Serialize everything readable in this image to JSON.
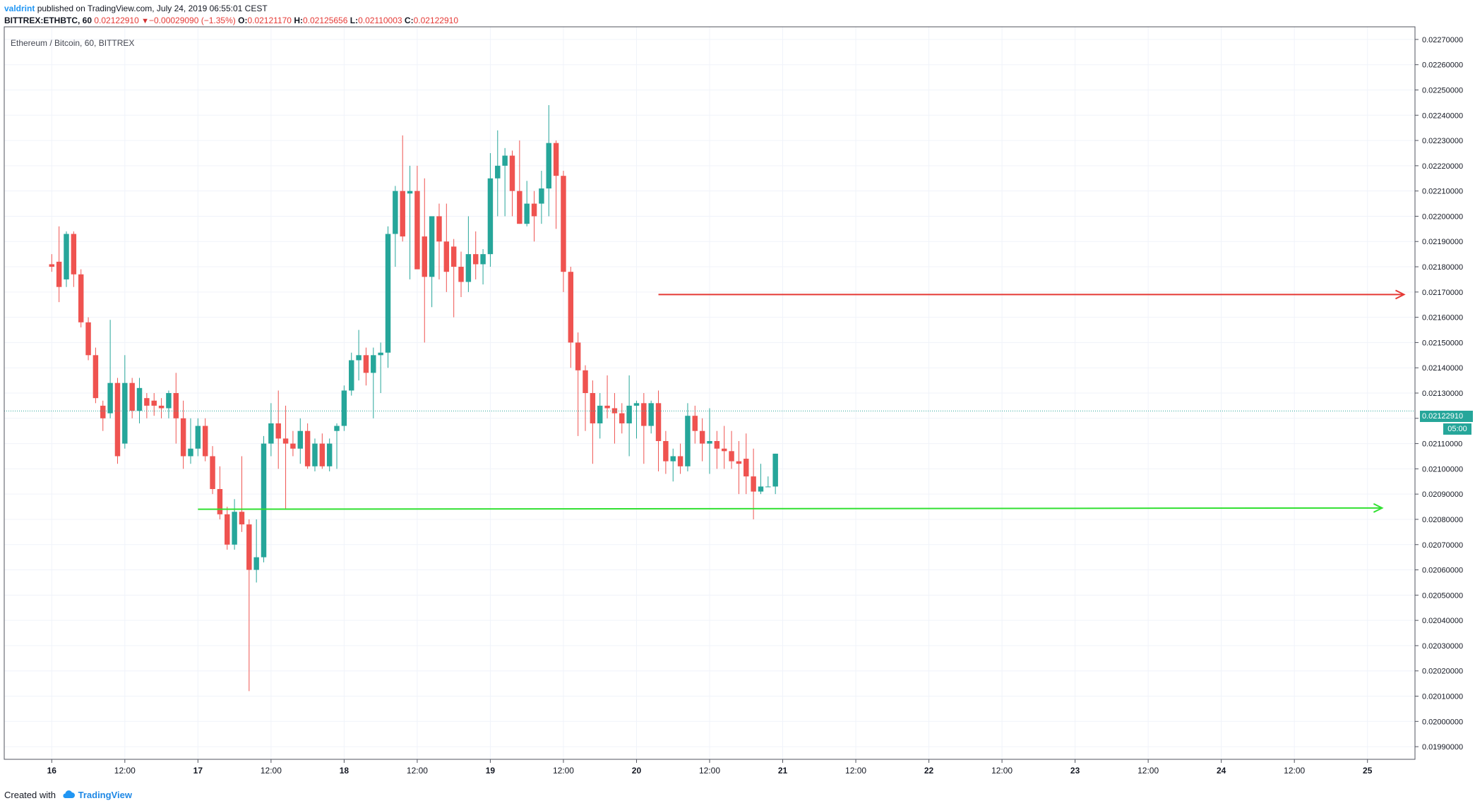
{
  "header": {
    "author": "valdrint",
    "published_text": "published on TradingView.com, July 24, 2019 06:55:01 CEST",
    "symbol": "BITTREX:ETHBTC, 60",
    "last": "0.02122910",
    "change_arrow": "triangle-down-icon",
    "change": "−0.00029090 (−1.35%)",
    "o_label": "O:",
    "o_value": "0.02121170",
    "h_label": "H:",
    "h_value": "0.02125656",
    "l_label": "L:",
    "l_value": "0.02110003",
    "c_label": "C:",
    "c_value": "0.02122910"
  },
  "pane_title": "Ethereum / Bitcoin, 60, BITTREX",
  "price_tag": "0.02122910",
  "countdown": "05:00",
  "footer": {
    "created_with": "Created with",
    "logo_text": "TradingView",
    "logo_icon": "tradingview-cloud-icon"
  },
  "colors": {
    "up": "#26a69a",
    "down": "#ef5350",
    "resistance": "#e53935",
    "support": "#31e031",
    "grid": "#f0f3fa"
  },
  "chart_data": {
    "type": "candlestick",
    "title": "Ethereum / Bitcoin, 60, BITTREX",
    "interval": "60",
    "ylim": [
      0.01985,
      0.02275
    ],
    "xlim": [
      -6.5,
      186.5
    ],
    "y_ticks": [
      "0.02270000",
      "0.02260000",
      "0.02250000",
      "0.02240000",
      "0.02230000",
      "0.02220000",
      "0.02210000",
      "0.02200000",
      "0.02190000",
      "0.02180000",
      "0.02170000",
      "0.02160000",
      "0.02150000",
      "0.02140000",
      "0.02130000",
      "0.02120000",
      "0.02110000",
      "0.02100000",
      "0.02090000",
      "0.02080000",
      "0.02070000",
      "0.02060000",
      "0.02050000",
      "0.02040000",
      "0.02030000",
      "0.02020000",
      "0.02010000",
      "0.02000000",
      "0.01990000"
    ],
    "x_ticks": [
      {
        "label": "16",
        "i": 0,
        "bold": true
      },
      {
        "label": "12:00",
        "i": 10
      },
      {
        "label": "17",
        "i": 20,
        "bold": true
      },
      {
        "label": "12:00",
        "i": 30
      },
      {
        "label": "18",
        "i": 40,
        "bold": true
      },
      {
        "label": "12:00",
        "i": 50
      },
      {
        "label": "19",
        "i": 60,
        "bold": true
      },
      {
        "label": "12:00",
        "i": 70
      },
      {
        "label": "20",
        "i": 80,
        "bold": true
      },
      {
        "label": "12:00",
        "i": 90
      },
      {
        "label": "21",
        "i": 100,
        "bold": true
      },
      {
        "label": "12:00",
        "i": 110
      },
      {
        "label": "22",
        "i": 120,
        "bold": true
      },
      {
        "label": "12:00",
        "i": 130
      },
      {
        "label": "23",
        "i": 140,
        "bold": true
      },
      {
        "label": "12:00",
        "i": 150
      },
      {
        "label": "24",
        "i": 160,
        "bold": true
      },
      {
        "label": "12:00",
        "i": 170
      },
      {
        "label": "25",
        "i": 180,
        "bold": true
      }
    ],
    "lines": [
      {
        "name": "resistance",
        "color": "#e53935",
        "x0": 83,
        "y0": 0.02169,
        "x1": 185,
        "y1": 0.02169
      },
      {
        "name": "support",
        "color": "#31e031",
        "x0": 20,
        "y0": 0.02084,
        "x1": 182,
        "y1": 0.020845
      }
    ],
    "last_price": 0.0212291,
    "candles": [
      [
        0.02181,
        0.02185,
        0.02178,
        0.0218
      ],
      [
        0.02182,
        0.02196,
        0.02166,
        0.02172
      ],
      [
        0.02175,
        0.02194,
        0.02172,
        0.02193
      ],
      [
        0.02193,
        0.02194,
        0.02172,
        0.02177
      ],
      [
        0.02177,
        0.02179,
        0.02156,
        0.02158
      ],
      [
        0.02158,
        0.0216,
        0.02143,
        0.02145
      ],
      [
        0.02145,
        0.02148,
        0.02126,
        0.02128
      ],
      [
        0.02125,
        0.02127,
        0.02115,
        0.0212
      ],
      [
        0.02122,
        0.02159,
        0.0212,
        0.02134
      ],
      [
        0.02134,
        0.02136,
        0.02102,
        0.02105
      ],
      [
        0.0211,
        0.02145,
        0.02108,
        0.02134
      ],
      [
        0.02134,
        0.02136,
        0.0212,
        0.02123
      ],
      [
        0.02123,
        0.02136,
        0.02118,
        0.02132
      ],
      [
        0.02128,
        0.0213,
        0.0212,
        0.02125
      ],
      [
        0.02127,
        0.0213,
        0.02121,
        0.02125
      ],
      [
        0.02125,
        0.02128,
        0.0212,
        0.02124
      ],
      [
        0.02124,
        0.02131,
        0.0212,
        0.0213
      ],
      [
        0.0213,
        0.02138,
        0.0211,
        0.0212
      ],
      [
        0.0212,
        0.02127,
        0.021,
        0.02105
      ],
      [
        0.02105,
        0.0212,
        0.02102,
        0.02108
      ],
      [
        0.02108,
        0.0212,
        0.02105,
        0.02117
      ],
      [
        0.02117,
        0.0212,
        0.02103,
        0.02105
      ],
      [
        0.02105,
        0.02109,
        0.0209,
        0.02092
      ],
      [
        0.02092,
        0.02101,
        0.0208,
        0.02082
      ],
      [
        0.02082,
        0.02085,
        0.02068,
        0.0207
      ],
      [
        0.0207,
        0.02088,
        0.02068,
        0.02083
      ],
      [
        0.02083,
        0.02105,
        0.02075,
        0.02078
      ],
      [
        0.02078,
        0.0208,
        0.02012,
        0.0206
      ],
      [
        0.0206,
        0.0208,
        0.02055,
        0.02065
      ],
      [
        0.02065,
        0.02113,
        0.02063,
        0.0211
      ],
      [
        0.0211,
        0.02126,
        0.02105,
        0.02118
      ],
      [
        0.02118,
        0.02131,
        0.021,
        0.02112
      ],
      [
        0.02112,
        0.02125,
        0.02084,
        0.0211
      ],
      [
        0.0211,
        0.02115,
        0.02105,
        0.02108
      ],
      [
        0.02108,
        0.0212,
        0.02102,
        0.02115
      ],
      [
        0.02115,
        0.02118,
        0.021,
        0.02101
      ],
      [
        0.02101,
        0.02112,
        0.02099,
        0.0211
      ],
      [
        0.0211,
        0.02114,
        0.021,
        0.02101
      ],
      [
        0.02101,
        0.02112,
        0.02099,
        0.0211
      ],
      [
        0.02115,
        0.02118,
        0.021,
        0.02117
      ],
      [
        0.02117,
        0.02133,
        0.02115,
        0.02131
      ],
      [
        0.02131,
        0.02146,
        0.02129,
        0.02143
      ],
      [
        0.02143,
        0.02155,
        0.02135,
        0.02145
      ],
      [
        0.02145,
        0.02148,
        0.02133,
        0.02138
      ],
      [
        0.02138,
        0.02148,
        0.0212,
        0.02145
      ],
      [
        0.02145,
        0.0215,
        0.0213,
        0.02146
      ],
      [
        0.02146,
        0.02196,
        0.0214,
        0.02193
      ],
      [
        0.02193,
        0.02212,
        0.0218,
        0.0221
      ],
      [
        0.0221,
        0.02232,
        0.0219,
        0.02192
      ],
      [
        0.02209,
        0.0222,
        0.02175,
        0.0221
      ],
      [
        0.0221,
        0.0222,
        0.0218,
        0.02179
      ],
      [
        0.02192,
        0.02215,
        0.0215,
        0.02176
      ],
      [
        0.02176,
        0.022,
        0.02164,
        0.022
      ],
      [
        0.022,
        0.02205,
        0.02175,
        0.0219
      ],
      [
        0.0219,
        0.02205,
        0.0217,
        0.02178
      ],
      [
        0.02188,
        0.02191,
        0.0216,
        0.0218
      ],
      [
        0.0218,
        0.02186,
        0.02168,
        0.02174
      ],
      [
        0.02174,
        0.022,
        0.0217,
        0.02185
      ],
      [
        0.02185,
        0.02194,
        0.02175,
        0.02181
      ],
      [
        0.02181,
        0.02187,
        0.02173,
        0.02185
      ],
      [
        0.02185,
        0.02225,
        0.0218,
        0.02215
      ],
      [
        0.02215,
        0.02234,
        0.022,
        0.0222
      ],
      [
        0.0222,
        0.02227,
        0.022,
        0.02224
      ],
      [
        0.02224,
        0.02226,
        0.022,
        0.0221
      ],
      [
        0.0221,
        0.0223,
        0.02197,
        0.02197
      ],
      [
        0.02197,
        0.02214,
        0.02196,
        0.02205
      ],
      [
        0.02205,
        0.0221,
        0.0219,
        0.022
      ],
      [
        0.02205,
        0.02218,
        0.02197,
        0.02211
      ],
      [
        0.02211,
        0.02244,
        0.022,
        0.02229
      ],
      [
        0.02229,
        0.0223,
        0.02195,
        0.02216
      ],
      [
        0.02216,
        0.02218,
        0.0217,
        0.02178
      ],
      [
        0.02178,
        0.0218,
        0.0214,
        0.0215
      ],
      [
        0.0215,
        0.02154,
        0.02113,
        0.02139
      ],
      [
        0.02139,
        0.02141,
        0.02115,
        0.0213
      ],
      [
        0.0213,
        0.02135,
        0.02102,
        0.02118
      ],
      [
        0.02118,
        0.0213,
        0.02112,
        0.02125
      ],
      [
        0.02125,
        0.02137,
        0.0212,
        0.02124
      ],
      [
        0.02124,
        0.0213,
        0.0211,
        0.02122
      ],
      [
        0.02122,
        0.02126,
        0.02114,
        0.02118
      ],
      [
        0.02118,
        0.02137,
        0.02105,
        0.02125
      ],
      [
        0.02125,
        0.02127,
        0.02112,
        0.02126
      ],
      [
        0.02126,
        0.0213,
        0.02102,
        0.02117
      ],
      [
        0.02117,
        0.02127,
        0.02114,
        0.02126
      ],
      [
        0.02126,
        0.02131,
        0.02099,
        0.02111
      ],
      [
        0.02111,
        0.02115,
        0.02098,
        0.02103
      ],
      [
        0.02103,
        0.02108,
        0.02095,
        0.02105
      ],
      [
        0.02105,
        0.0211,
        0.02098,
        0.02101
      ],
      [
        0.02101,
        0.02126,
        0.02099,
        0.02121
      ],
      [
        0.02121,
        0.02125,
        0.0211,
        0.02115
      ],
      [
        0.02115,
        0.0212,
        0.02103,
        0.0211
      ],
      [
        0.0211,
        0.02124,
        0.02098,
        0.02111
      ],
      [
        0.02111,
        0.02115,
        0.021,
        0.02108
      ],
      [
        0.02108,
        0.02117,
        0.021,
        0.02107
      ],
      [
        0.02107,
        0.02115,
        0.021,
        0.02103
      ],
      [
        0.02103,
        0.02111,
        0.0209,
        0.02102
      ],
      [
        0.02104,
        0.02114,
        0.0209,
        0.02097
      ],
      [
        0.02097,
        0.02108,
        0.0208,
        0.02091
      ],
      [
        0.02091,
        0.02102,
        0.0209,
        0.02093
      ],
      [
        0.02093,
        0.02097,
        0.02093,
        0.02093
      ],
      [
        0.02093,
        0.02106,
        0.0209,
        0.02106
      ]
    ]
  }
}
